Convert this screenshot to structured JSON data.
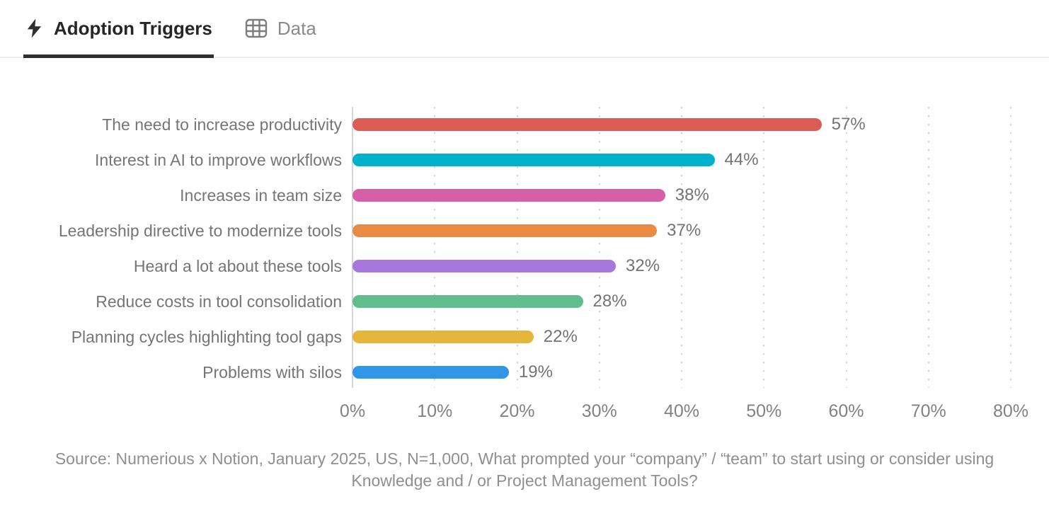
{
  "tabs": [
    {
      "label": "Adoption Triggers",
      "icon": "lightning-icon",
      "active": true
    },
    {
      "label": "Data",
      "icon": "table-icon",
      "active": false
    }
  ],
  "chart_data": {
    "type": "bar",
    "orientation": "horizontal",
    "title": "Adoption Triggers",
    "categories": [
      "The need to increase productivity",
      "Interest in AI to improve workflows",
      "Increases in team size",
      "Leadership directive to modernize tools",
      "Heard a lot about these tools",
      "Reduce costs in tool consolidation",
      "Planning cycles highlighting tool gaps",
      "Problems with silos"
    ],
    "values": [
      57,
      44,
      38,
      37,
      32,
      28,
      22,
      19
    ],
    "value_labels": [
      "57%",
      "44%",
      "38%",
      "37%",
      "32%",
      "28%",
      "22%",
      "19%"
    ],
    "bar_colors": [
      "#db5b55",
      "#00b1cd",
      "#d75fa7",
      "#e98b43",
      "#a678de",
      "#60bd8c",
      "#e6b63a",
      "#3096e8"
    ],
    "xlabel": "",
    "ylabel": "",
    "xlim": [
      0,
      80
    ],
    "x_ticks": [
      "0%",
      "10%",
      "20%",
      "30%",
      "40%",
      "50%",
      "60%",
      "70%",
      "80%"
    ],
    "grid": "vertical-dotted",
    "legend": "none"
  },
  "source": {
    "text": "Source: Numerious x Notion, January 2025, US, N=1,000, What prompted your “company” / “team” to start using or consider using Knowledge and / or Project Management Tools?"
  },
  "colors": {
    "accent_underline": "#2f2f2f",
    "tab_active_text": "#262626",
    "tab_inactive_text": "#8a8a8a",
    "axis_line": "#d6d6d6",
    "grid_dots": "#d4d4d4",
    "label_text": "#757575",
    "tick_text": "#828282",
    "source_text": "#8f8f8f"
  }
}
